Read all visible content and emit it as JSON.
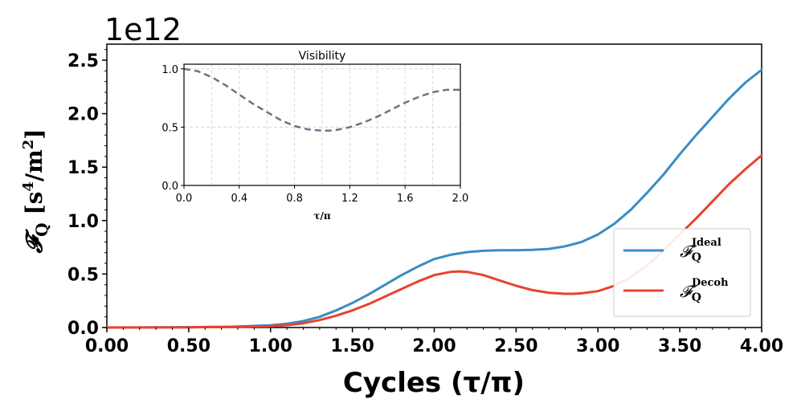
{
  "chart_data": [
    {
      "type": "line",
      "xlabel": "Cycles (τ/π)",
      "ylabel_main": "𝓕",
      "ylabel_sub": "Q",
      "ylabel_unit": "[s",
      "ylabel_unit_sup": "4",
      "ylabel_unit_mid": "/m",
      "ylabel_unit_sup2": "2",
      "ylabel_unit_end": "]",
      "offset_text": "1e12",
      "xlim": [
        0,
        4
      ],
      "ylim": [
        0,
        2.65
      ],
      "xticks": [
        0,
        0.5,
        1,
        1.5,
        2,
        2.5,
        3,
        3.5,
        4
      ],
      "xtick_labels": [
        "0.00",
        "0.50",
        "1.00",
        "1.50",
        "2.00",
        "2.50",
        "3.00",
        "3.50",
        "4.00"
      ],
      "yticks": [
        0,
        0.5,
        1,
        1.5,
        2,
        2.5
      ],
      "ytick_labels": [
        "0.0",
        "0.5",
        "1.0",
        "1.5",
        "2.0",
        "2.5"
      ],
      "legend_position": "lower-right",
      "series": [
        {
          "name": "F_Q^Ideal",
          "legend_sup": "Ideal",
          "color": "#3a8cc4",
          "x": [
            0,
            0.25,
            0.5,
            0.75,
            1.0,
            1.1,
            1.2,
            1.3,
            1.4,
            1.5,
            1.6,
            1.7,
            1.8,
            1.9,
            2.0,
            2.1,
            2.2,
            2.3,
            2.4,
            2.5,
            2.6,
            2.7,
            2.8,
            2.9,
            3.0,
            3.1,
            3.2,
            3.3,
            3.4,
            3.5,
            3.6,
            3.7,
            3.8,
            3.9,
            4.0
          ],
          "y": [
            0,
            0.001,
            0.003,
            0.007,
            0.02,
            0.035,
            0.06,
            0.1,
            0.16,
            0.23,
            0.31,
            0.4,
            0.49,
            0.57,
            0.64,
            0.68,
            0.705,
            0.718,
            0.722,
            0.723,
            0.726,
            0.735,
            0.76,
            0.8,
            0.87,
            0.97,
            1.1,
            1.26,
            1.43,
            1.62,
            1.8,
            1.97,
            2.14,
            2.29,
            2.41
          ]
        },
        {
          "name": "F_Q^Decoh",
          "legend_sup": "Decoh",
          "color": "#e8432e",
          "x": [
            0,
            0.25,
            0.5,
            0.75,
            1.0,
            1.1,
            1.2,
            1.3,
            1.4,
            1.5,
            1.6,
            1.7,
            1.8,
            1.9,
            2.0,
            2.1,
            2.15,
            2.2,
            2.3,
            2.4,
            2.5,
            2.6,
            2.7,
            2.8,
            2.85,
            2.9,
            3.0,
            3.1,
            3.2,
            3.3,
            3.4,
            3.5,
            3.6,
            3.7,
            3.8,
            3.9,
            4.0
          ],
          "y": [
            0,
            0.001,
            0.002,
            0.005,
            0.012,
            0.022,
            0.04,
            0.07,
            0.11,
            0.16,
            0.22,
            0.29,
            0.36,
            0.43,
            0.49,
            0.52,
            0.525,
            0.52,
            0.49,
            0.44,
            0.39,
            0.35,
            0.325,
            0.315,
            0.315,
            0.32,
            0.34,
            0.39,
            0.47,
            0.58,
            0.72,
            0.87,
            1.02,
            1.18,
            1.34,
            1.48,
            1.61
          ]
        }
      ]
    },
    {
      "type": "line",
      "title": "Visibility",
      "xlabel": "τ/π",
      "xlim": [
        0,
        2
      ],
      "ylim": [
        0,
        1.04
      ],
      "xticks": [
        0,
        0.4,
        0.8,
        1.2,
        1.6,
        2.0
      ],
      "xtick_labels": [
        "0.0",
        "0.4",
        "0.8",
        "1.2",
        "1.6",
        "2.0"
      ],
      "yticks": [
        0,
        0.5,
        1.0
      ],
      "ytick_labels": [
        "0.0",
        "0.5",
        "1.0"
      ],
      "grid": true,
      "series": [
        {
          "name": "Visibility",
          "color": "#6b7388",
          "style": "dashed",
          "x": [
            0,
            0.1,
            0.2,
            0.3,
            0.4,
            0.5,
            0.6,
            0.7,
            0.8,
            0.9,
            1.0,
            1.05,
            1.1,
            1.2,
            1.3,
            1.4,
            1.5,
            1.6,
            1.7,
            1.8,
            1.9,
            2.0
          ],
          "y": [
            1.0,
            0.98,
            0.93,
            0.86,
            0.78,
            0.7,
            0.63,
            0.56,
            0.51,
            0.48,
            0.47,
            0.47,
            0.475,
            0.5,
            0.54,
            0.59,
            0.65,
            0.71,
            0.76,
            0.8,
            0.82,
            0.82
          ]
        }
      ]
    }
  ]
}
